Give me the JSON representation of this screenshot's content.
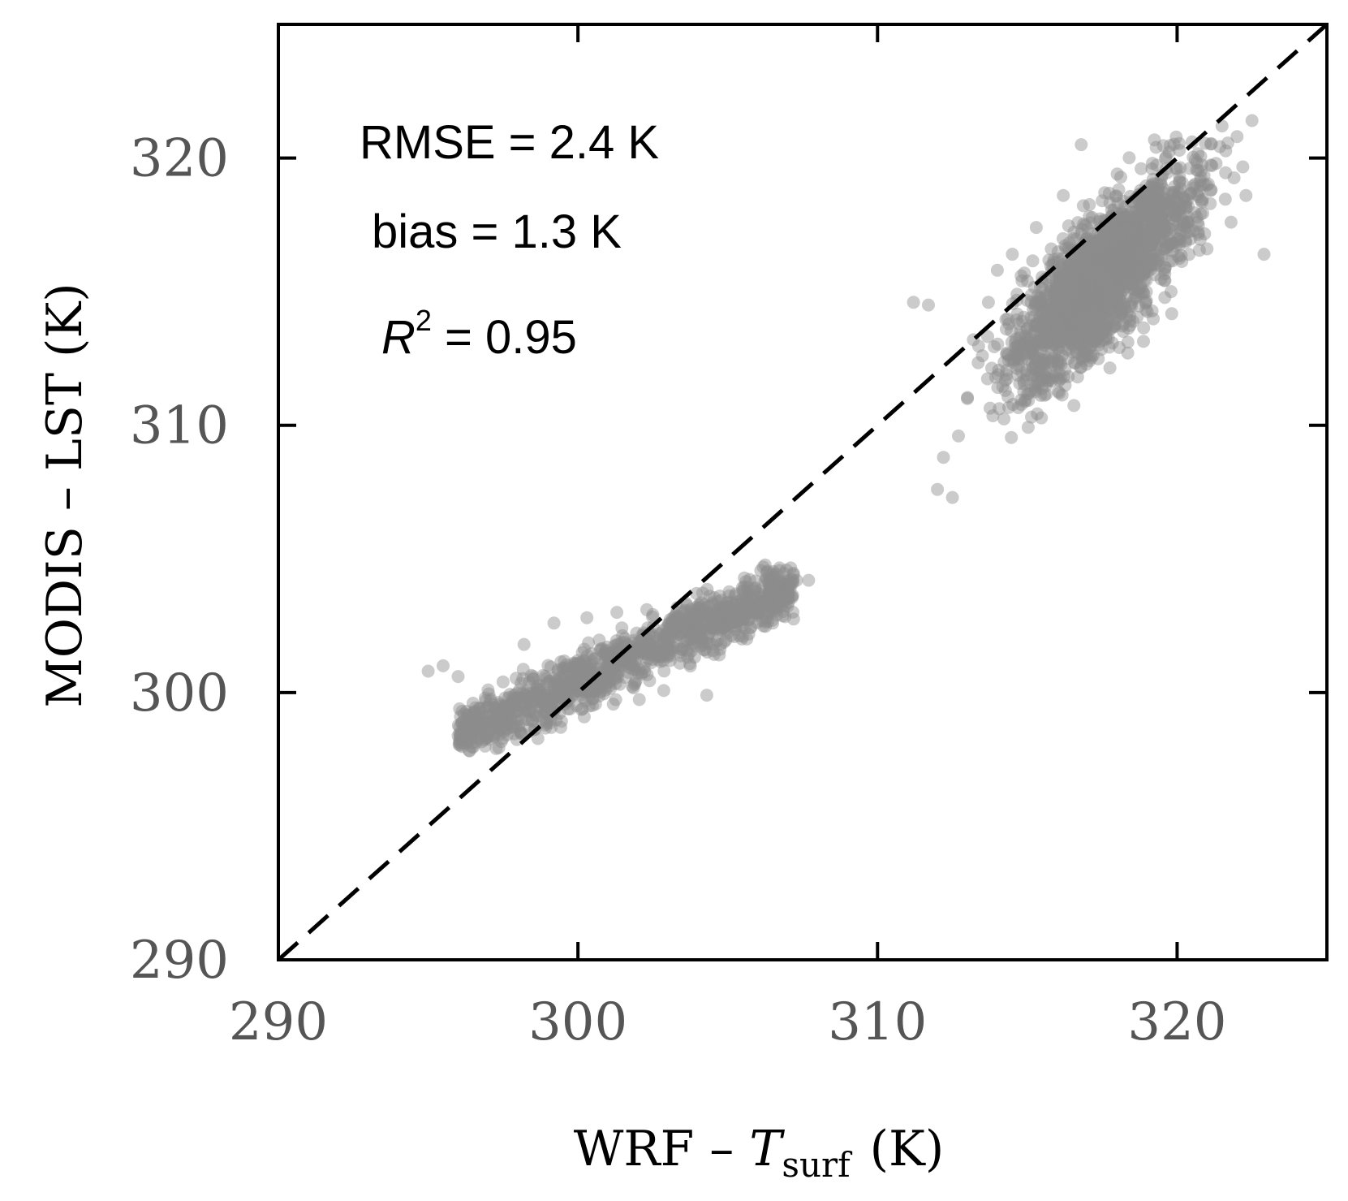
{
  "chart_data": {
    "type": "scatter",
    "title": "",
    "xlabel": "WRF – T_surf (K)",
    "ylabel": "MODIS – LST (K)",
    "xlabel_parts": {
      "prefix": "WRF – ",
      "var": "T",
      "sub": "surf",
      "unit": "(K)"
    },
    "xlim": [
      290,
      325
    ],
    "ylim": [
      290,
      325
    ],
    "xticks": [
      290,
      300,
      310,
      320
    ],
    "yticks": [
      290,
      300,
      310,
      320
    ],
    "xtick_labels": [
      "290",
      "300",
      "310",
      "320"
    ],
    "ytick_labels": [
      "290",
      "300",
      "310",
      "320"
    ],
    "reference_line": {
      "type": "1:1",
      "style": "dashed",
      "from": [
        290,
        290
      ],
      "to": [
        325,
        325
      ]
    },
    "annotations": [
      {
        "name": "rmse",
        "text": "RMSE = 2.4  K"
      },
      {
        "name": "bias",
        "text": "bias = 1.3  K"
      },
      {
        "name": "r2",
        "text_prefix": "R",
        "text_sup": "2",
        "text_suffix": " = 0.95"
      }
    ],
    "series": [
      {
        "name": "cluster-low",
        "approx_count": 1200,
        "x_range": [
          295,
          307.7
        ],
        "y_range": [
          297.8,
          304.8
        ],
        "note": "dense cloud of points along 1:1 line, roughly y = 0.5x + 150",
        "x": [
          295.0,
          295.5,
          296.0,
          296.2,
          296.5,
          297.0,
          297.2,
          297.5,
          298.0,
          298.2,
          298.5,
          299.0,
          299.2,
          299.5,
          300.0,
          300.3,
          300.5,
          301.0,
          301.3,
          301.5,
          302.0,
          302.3,
          302.5,
          303.0,
          303.3,
          303.5,
          304.0,
          304.3,
          304.5,
          305.0,
          305.3,
          305.5,
          306.0,
          306.3,
          306.5,
          307.0,
          307.3,
          307.7
        ],
        "y": [
          300.8,
          301.0,
          300.6,
          299.2,
          299.6,
          300.1,
          299.0,
          300.4,
          299.8,
          301.8,
          300.6,
          300.0,
          302.6,
          300.8,
          301.2,
          302.8,
          300.6,
          301.4,
          303.0,
          301.0,
          301.8,
          303.1,
          301.4,
          302.0,
          303.0,
          301.6,
          302.6,
          299.9,
          301.8,
          302.6,
          303.4,
          302.1,
          303.3,
          304.5,
          302.6,
          303.9,
          304.2,
          304.2
        ]
      },
      {
        "name": "cluster-high",
        "approx_count": 1800,
        "x_range": [
          311.2,
          322.9
        ],
        "y_range": [
          306.7,
          321.5
        ],
        "note": "dense cloud of points around the 1:1 line",
        "x": [
          311.2,
          311.7,
          312.0,
          312.2,
          312.5,
          312.7,
          313.0,
          313.2,
          313.5,
          313.7,
          314.0,
          314.3,
          314.5,
          314.8,
          315.0,
          315.3,
          315.5,
          315.8,
          316.0,
          316.2,
          316.5,
          316.8,
          317.0,
          317.3,
          317.5,
          317.8,
          318.0,
          318.3,
          318.5,
          318.8,
          319.0,
          319.3,
          319.5,
          319.8,
          320.0,
          320.3,
          320.5,
          320.8,
          321.0,
          321.3,
          321.5,
          321.8,
          322.0,
          322.3,
          322.5,
          322.9
        ],
        "y": [
          314.6,
          314.5,
          307.6,
          308.8,
          307.3,
          309.6,
          311.0,
          313.2,
          312.6,
          314.6,
          315.8,
          313.6,
          316.4,
          312.8,
          315.4,
          317.4,
          314.2,
          316.6,
          312.4,
          318.6,
          315.6,
          320.5,
          317.0,
          313.6,
          318.4,
          316.0,
          319.4,
          314.8,
          317.2,
          319.6,
          316.0,
          320.4,
          317.8,
          315.0,
          319.6,
          317.2,
          320.6,
          318.4,
          316.6,
          319.8,
          321.2,
          317.6,
          320.8,
          318.6,
          321.4,
          316.4
        ]
      }
    ],
    "colors": {
      "points": "#8c8c8c",
      "axes": "#000000",
      "tick_labels": "#555555"
    }
  }
}
